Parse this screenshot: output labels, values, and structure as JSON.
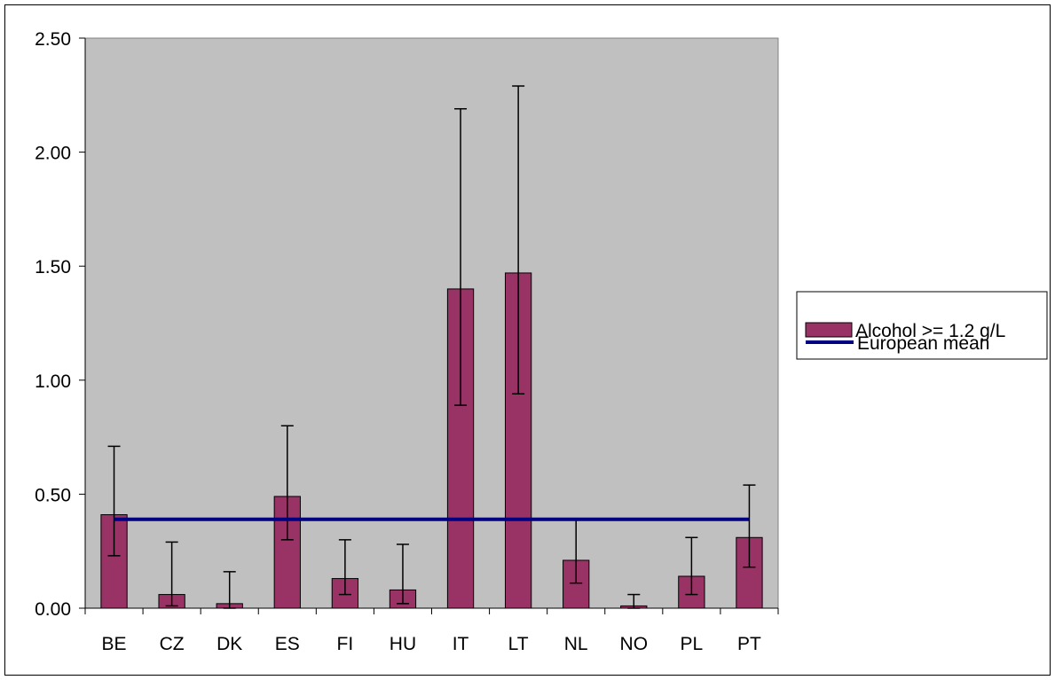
{
  "chart_data": {
    "type": "bar",
    "title": "",
    "xlabel": "",
    "ylabel": "",
    "categories": [
      "BE",
      "CZ",
      "DK",
      "ES",
      "FI",
      "HU",
      "IT",
      "LT",
      "NL",
      "NO",
      "PL",
      "PT"
    ],
    "series": [
      {
        "name": "Alcohol >= 1.2 g/L",
        "type": "bar",
        "color": "#993366",
        "values": [
          0.41,
          0.06,
          0.02,
          0.49,
          0.13,
          0.08,
          1.4,
          1.47,
          0.21,
          0.01,
          0.14,
          0.31
        ],
        "error_lower": [
          0.23,
          0.01,
          0.0,
          0.3,
          0.06,
          0.02,
          0.89,
          0.94,
          0.11,
          0.0,
          0.06,
          0.18
        ],
        "error_upper": [
          0.71,
          0.29,
          0.16,
          0.8,
          0.3,
          0.28,
          2.19,
          2.29,
          0.39,
          0.06,
          0.31,
          0.54
        ]
      },
      {
        "name": "European mean",
        "type": "line",
        "color": "#000080",
        "value": 0.39
      }
    ],
    "ylim": [
      0,
      2.5
    ],
    "yticks": [
      0.0,
      0.5,
      1.0,
      1.5,
      2.0,
      2.5
    ],
    "ytick_labels": [
      "0.00",
      "0.50",
      "1.00",
      "1.50",
      "2.00",
      "2.50"
    ],
    "grid": false,
    "plot_background": "#c0c0c0",
    "legend_position": "right"
  }
}
